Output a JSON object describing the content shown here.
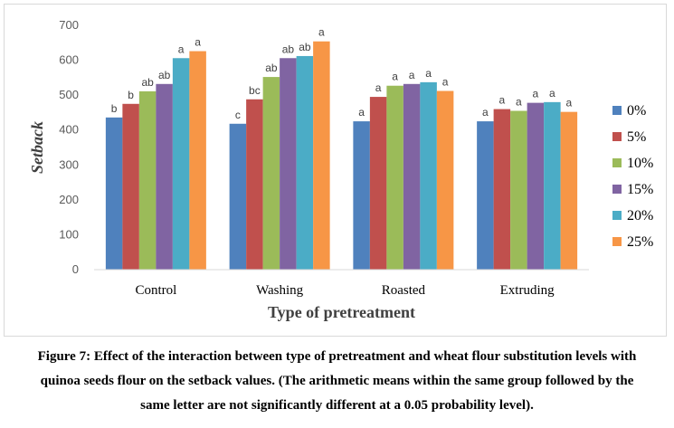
{
  "chart_data": {
    "type": "bar",
    "xlabel": "Type of pretreatment",
    "ylabel": "Setback",
    "ylim": [
      0,
      700
    ],
    "yticks": [
      0,
      100,
      200,
      300,
      400,
      500,
      600,
      700
    ],
    "grid": false,
    "legend_position": "right",
    "categories": [
      "Control",
      "Washing",
      "Roasted",
      "Extruding"
    ],
    "series": [
      {
        "name": "0%",
        "color": "#4F81BD",
        "values": [
          436,
          418,
          425,
          425
        ],
        "letters": [
          "b",
          "c",
          "a",
          "a"
        ]
      },
      {
        "name": "5%",
        "color": "#C0504D",
        "values": [
          475,
          488,
          495,
          460
        ],
        "letters": [
          "b",
          "bc",
          "a",
          "a"
        ]
      },
      {
        "name": "10%",
        "color": "#9BBB59",
        "values": [
          511,
          552,
          527,
          455
        ],
        "letters": [
          "ab",
          "ab",
          "a",
          "a"
        ]
      },
      {
        "name": "15%",
        "color": "#8064A2",
        "values": [
          532,
          606,
          532,
          478
        ],
        "letters": [
          "ab",
          "ab",
          "a",
          "a"
        ]
      },
      {
        "name": "20%",
        "color": "#4BACC6",
        "values": [
          606,
          612,
          537,
          480
        ],
        "letters": [
          "a",
          "ab",
          "a",
          "a"
        ]
      },
      {
        "name": "25%",
        "color": "#F79646",
        "values": [
          626,
          654,
          512,
          452
        ],
        "letters": [
          "a",
          "a",
          "a",
          "a"
        ]
      }
    ]
  },
  "caption": {
    "line1": "Figure 7: Effect of the interaction between type of pretreatment and wheat flour substitution levels with",
    "line2": "quinoa seeds flour on the setback values. (The arithmetic means within the same group followed by the",
    "line3": "same letter are not significantly different at a 0.05 probability level)."
  }
}
